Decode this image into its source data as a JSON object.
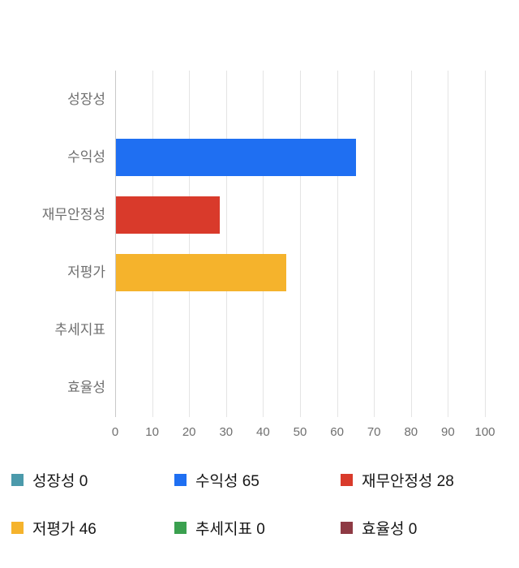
{
  "chart_data": {
    "type": "bar",
    "orientation": "horizontal",
    "title": "",
    "xlabel": "",
    "ylabel": "",
    "grid": true,
    "legend_position": "bottom",
    "xlim": [
      0,
      100
    ],
    "x_ticks": [
      0,
      10,
      20,
      30,
      40,
      50,
      60,
      70,
      80,
      90,
      100
    ],
    "categories": [
      "성장성",
      "수익성",
      "재무안정성",
      "저평가",
      "추세지표",
      "효율성"
    ],
    "keys": [
      "growth",
      "profitability",
      "financial-stability",
      "undervaluation",
      "trend-indicator",
      "efficiency"
    ],
    "values": [
      0,
      65,
      28,
      46,
      0,
      0
    ],
    "colors": [
      "#4b9aab",
      "#1f6ff2",
      "#d93a2b",
      "#f5b32c",
      "#3aa04f",
      "#8e3a44"
    ],
    "legend": [
      {
        "label": "성장성",
        "value": 0,
        "color": "#4b9aab",
        "key": "growth"
      },
      {
        "label": "수익성",
        "value": 65,
        "color": "#1f6ff2",
        "key": "profitability"
      },
      {
        "label": "재무안정성",
        "value": 28,
        "color": "#d93a2b",
        "key": "financial-stability"
      },
      {
        "label": "저평가",
        "value": 46,
        "color": "#f5b32c",
        "key": "undervaluation"
      },
      {
        "label": "추세지표",
        "value": 0,
        "color": "#3aa04f",
        "key": "trend-indicator"
      },
      {
        "label": "효율성",
        "value": 0,
        "color": "#8e3a44",
        "key": "efficiency"
      }
    ]
  }
}
